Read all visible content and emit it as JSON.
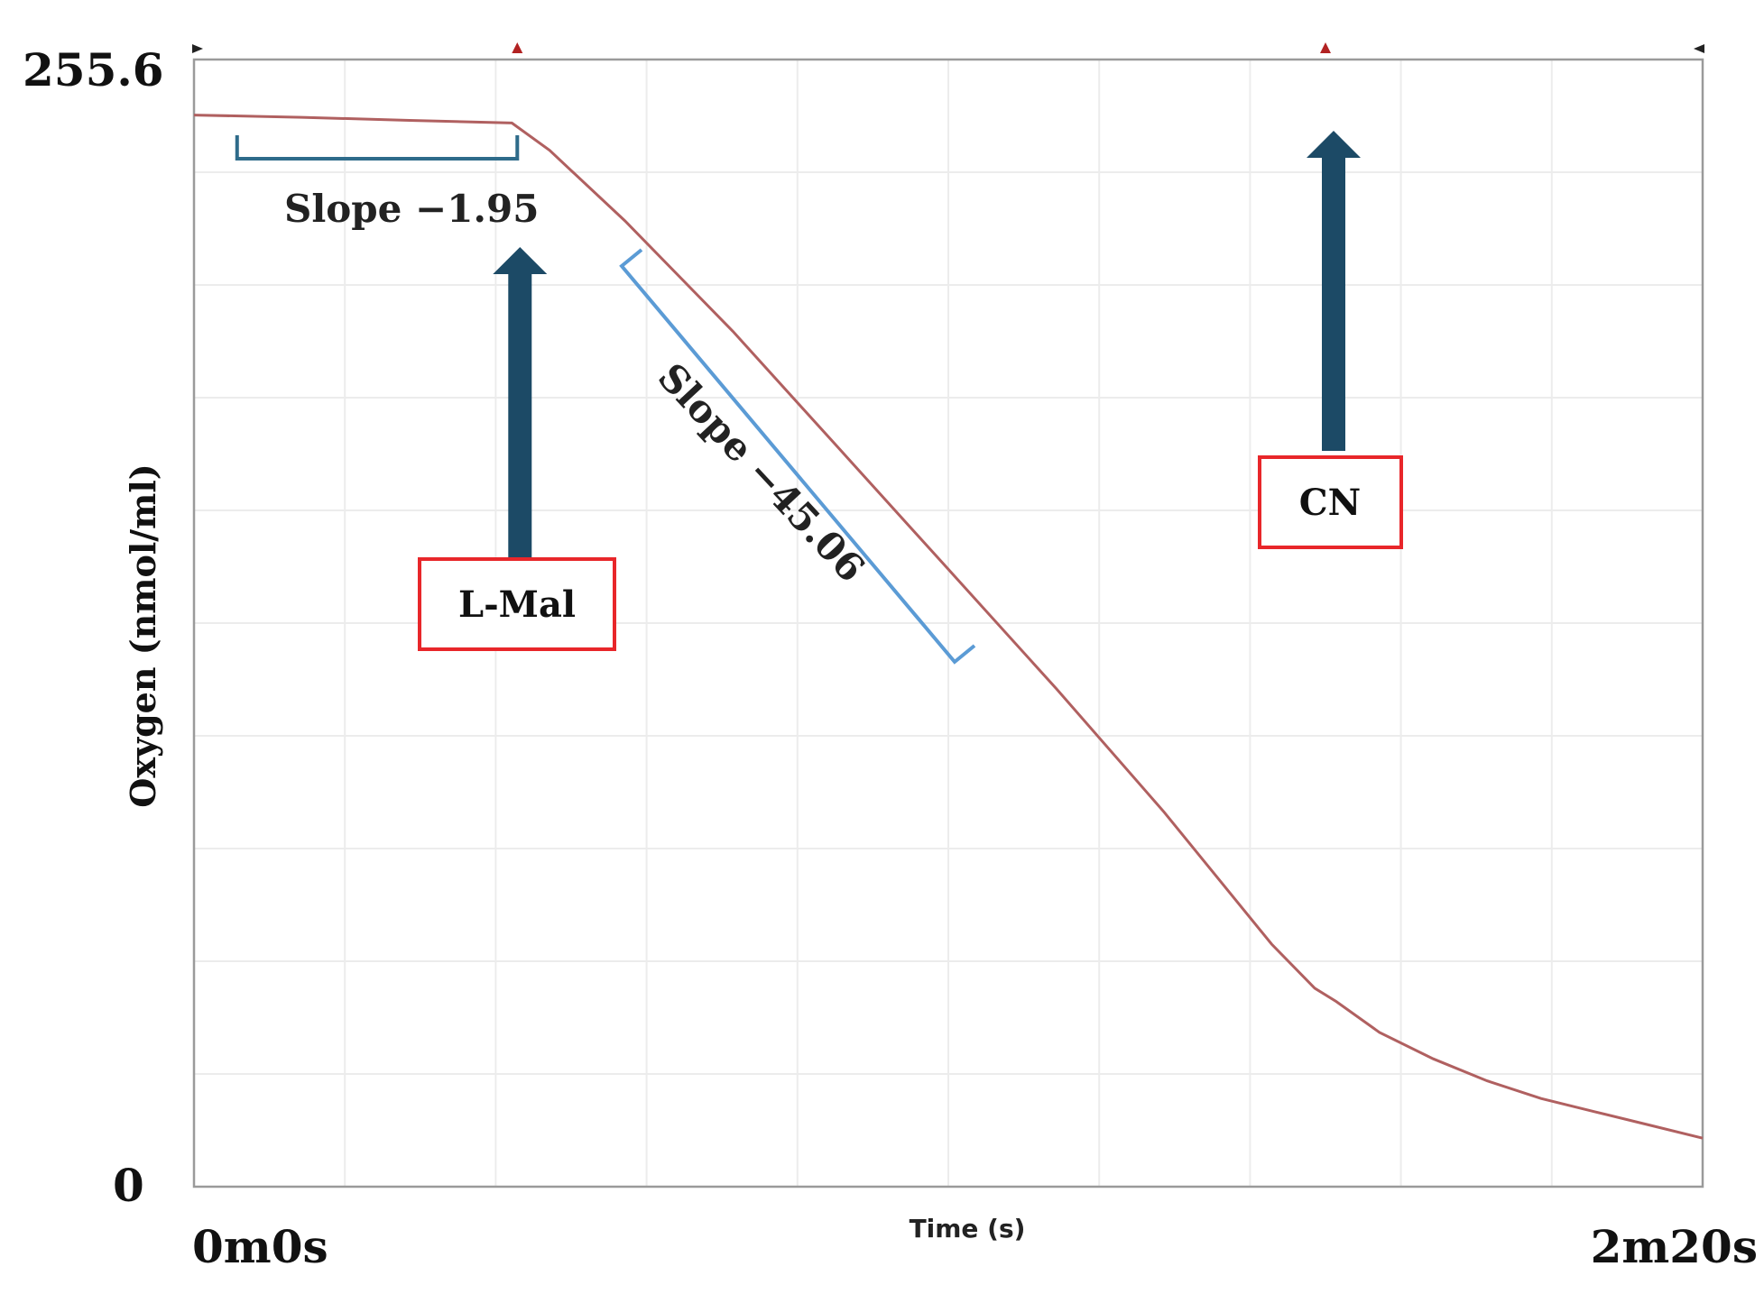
{
  "chart_data": {
    "type": "line",
    "title": "",
    "xlabel": "Time (s)",
    "ylabel": "Oxygen (nmol/ml)",
    "xlim": [
      0,
      140
    ],
    "ylim": [
      0,
      255.6
    ],
    "x_tick_labels": [
      "0m0s",
      "2m20s"
    ],
    "y_tick_labels": [
      "0",
      "255.6"
    ],
    "grid": true,
    "line_color": "#b06060",
    "series": [
      {
        "x": [
          0,
          10,
          20,
          29.5,
          33,
          40,
          50,
          60,
          70,
          80,
          90,
          100,
          104,
          106,
          110,
          115,
          120,
          125,
          130,
          135,
          140
        ],
        "y": [
          243,
          242.5,
          241.8,
          241.2,
          235,
          219,
          194,
          167,
          140,
          113,
          85,
          55,
          45,
          42,
          35,
          29,
          24,
          20,
          17,
          14,
          11
        ]
      }
    ],
    "annotations": {
      "slope1": {
        "text": "Slope  −1.95",
        "x_start": 4,
        "x_end": 30
      },
      "slope2": {
        "text": "Slope  −45.06",
        "x_start": 40,
        "x_end": 72
      },
      "lmal": {
        "label": "L-Mal",
        "x": 30
      },
      "cn": {
        "label": "CN",
        "x": 105
      }
    },
    "marker_ticks_x": [
      0,
      30,
      105,
      140
    ],
    "colors": {
      "bracket": "#5b9bd5",
      "bracket_dark": "#2e6b8a",
      "arrow": "#1c4a66",
      "box_border": "#e8262a",
      "marker": "#b22222"
    }
  }
}
